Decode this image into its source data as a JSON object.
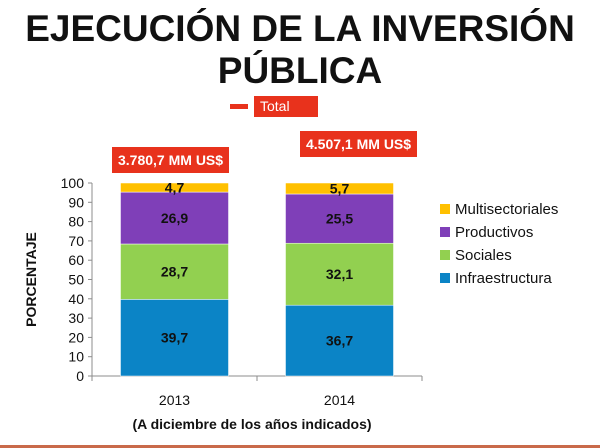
{
  "title": "EJECUCIÓN DE LA INVERSIÓN PÚBLICA",
  "chart_data": {
    "type": "bar",
    "stacked": true,
    "categories": [
      "2013",
      "2014"
    ],
    "series": [
      {
        "name": "Infraestructura",
        "values": [
          39.7,
          36.7
        ],
        "labels": [
          "39,7",
          "36,7"
        ],
        "color": "#0b84c6"
      },
      {
        "name": "Sociales",
        "values": [
          28.7,
          32.1
        ],
        "labels": [
          "28,7",
          "32,1"
        ],
        "color": "#92d050"
      },
      {
        "name": "Productivos",
        "values": [
          26.9,
          25.5
        ],
        "labels": [
          "26,9",
          "25,5"
        ],
        "color": "#7f3fb8"
      },
      {
        "name": "Multisectoriales",
        "values": [
          4.7,
          5.7
        ],
        "labels": [
          "4,7",
          "5,7"
        ],
        "color": "#ffc000"
      }
    ],
    "totals": [
      "3.780,7 MM US$",
      "4.507,1 MM US$"
    ],
    "totals_legend": "Total",
    "ylabel": "PORCENTAJE",
    "xlabel": "(A diciembre de los años indicados)",
    "ylim": [
      0,
      100
    ],
    "yticks": [
      0,
      10,
      20,
      30,
      40,
      50,
      60,
      70,
      80,
      90,
      100
    ],
    "legend_position": "right",
    "grid": false
  }
}
